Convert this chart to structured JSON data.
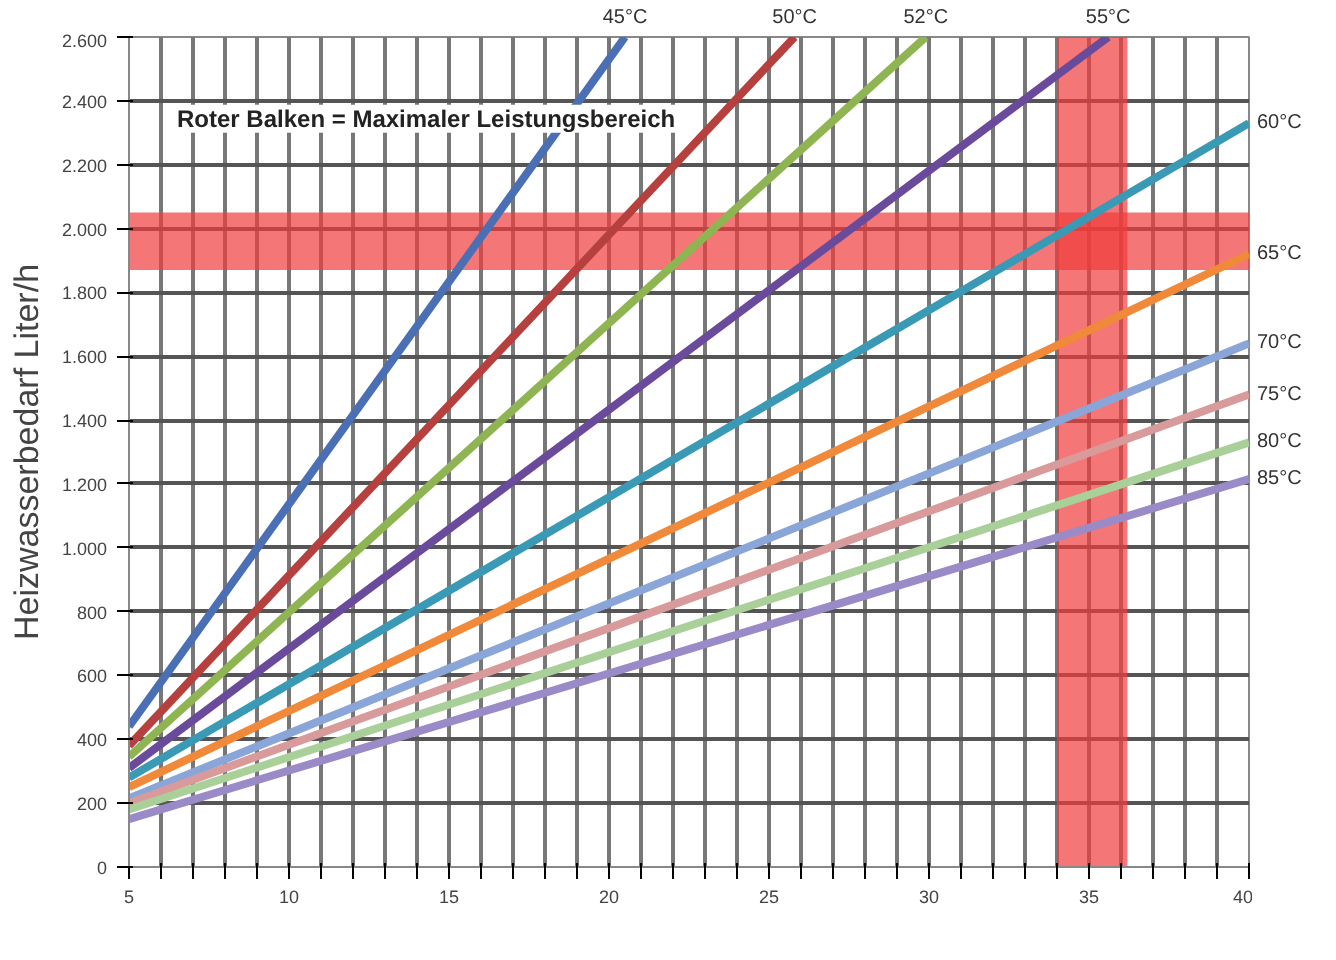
{
  "chart_data": {
    "type": "line",
    "ylabel": "Heizwasserbedarf Liter/h",
    "xlim": [
      5,
      40
    ],
    "xticks": [
      5,
      {
        "value": 6,
        "label": null
      },
      {
        "value": 7,
        "label": null
      },
      {
        "value": 8,
        "label": null
      },
      {
        "value": 9,
        "label": null
      },
      10,
      {
        "value": 11,
        "label": null
      },
      {
        "value": 12,
        "label": null
      },
      {
        "value": 13,
        "label": null
      },
      {
        "value": 14,
        "label": null
      },
      15,
      {
        "value": 16,
        "label": null
      },
      {
        "value": 17,
        "label": null
      },
      {
        "value": 18,
        "label": null
      },
      {
        "value": 19,
        "label": null
      },
      20,
      {
        "value": 21,
        "label": null
      },
      {
        "value": 22,
        "label": null
      },
      {
        "value": 23,
        "label": null
      },
      {
        "value": 24,
        "label": null
      },
      25,
      {
        "value": 26,
        "label": null
      },
      {
        "value": 27,
        "label": null
      },
      {
        "value": 28,
        "label": null
      },
      {
        "value": 29,
        "label": null
      },
      30,
      {
        "value": 31,
        "label": null
      },
      {
        "value": 32,
        "label": null
      },
      {
        "value": 33,
        "label": null
      },
      {
        "value": 34,
        "label": null
      },
      35,
      {
        "value": 36,
        "label": null
      },
      {
        "value": 37,
        "label": null
      },
      {
        "value": 38,
        "label": null
      },
      {
        "value": 39,
        "label": null
      },
      40
    ],
    "ylim": [
      0,
      2600
    ],
    "yticks": [
      0,
      200,
      400,
      600,
      800,
      {
        "value": 1000,
        "label": "1.000"
      },
      {
        "value": 1200,
        "label": "1.200"
      },
      {
        "value": 1400,
        "label": "1.400"
      },
      {
        "value": 1600,
        "label": "1.600"
      },
      {
        "value": 1800,
        "label": "1.800"
      },
      {
        "value": 2000,
        "label": "2.000"
      },
      {
        "value": 2200,
        "label": "2.200"
      },
      {
        "value": 2400,
        "label": "2.400"
      },
      {
        "value": 2600,
        "label": "2.600"
      }
    ],
    "grid": true,
    "line_style": "solid",
    "marker": "none",
    "series": [
      {
        "name": "45°C",
        "color": "#4a6fb5",
        "x": [
          5,
          20.5
        ],
        "values": [
          440,
          2600
        ]
      },
      {
        "name": "50°C",
        "color": "#b5403e",
        "x": [
          5,
          25.8
        ],
        "values": [
          380,
          2600
        ]
      },
      {
        "name": "52°C",
        "color": "#8fb552",
        "x": [
          5,
          29.9
        ],
        "values": [
          345,
          2600
        ]
      },
      {
        "name": "55°C",
        "color": "#6a4a9a",
        "x": [
          5,
          35.6
        ],
        "values": [
          310,
          2600
        ]
      },
      {
        "name": "60°C",
        "color": "#3a9ab5",
        "x": [
          5,
          40
        ],
        "values": [
          280,
          2330
        ]
      },
      {
        "name": "65°C",
        "color": "#f08a3a",
        "x": [
          5,
          40
        ],
        "values": [
          250,
          1920
        ]
      },
      {
        "name": "70°C",
        "color": "#8aa5d8",
        "x": [
          5,
          40
        ],
        "values": [
          215,
          1640
        ]
      },
      {
        "name": "75°C",
        "color": "#d89a9a",
        "x": [
          5,
          40
        ],
        "values": [
          200,
          1480
        ]
      },
      {
        "name": "80°C",
        "color": "#a8d098",
        "x": [
          5,
          40
        ],
        "values": [
          180,
          1330
        ]
      },
      {
        "name": "85°C",
        "color": "#9a8ac8",
        "x": [
          5,
          40
        ],
        "values": [
          150,
          1215
        ]
      }
    ],
    "bands": [
      {
        "axis": "y",
        "from": 1870,
        "to": 2050,
        "color": "#f03c3c"
      },
      {
        "axis": "x",
        "from": 34,
        "to": 36.2,
        "color": "#f03c3c"
      }
    ],
    "annotations": [
      "Roter Balken = Maximaler Leistungsbereich"
    ]
  }
}
